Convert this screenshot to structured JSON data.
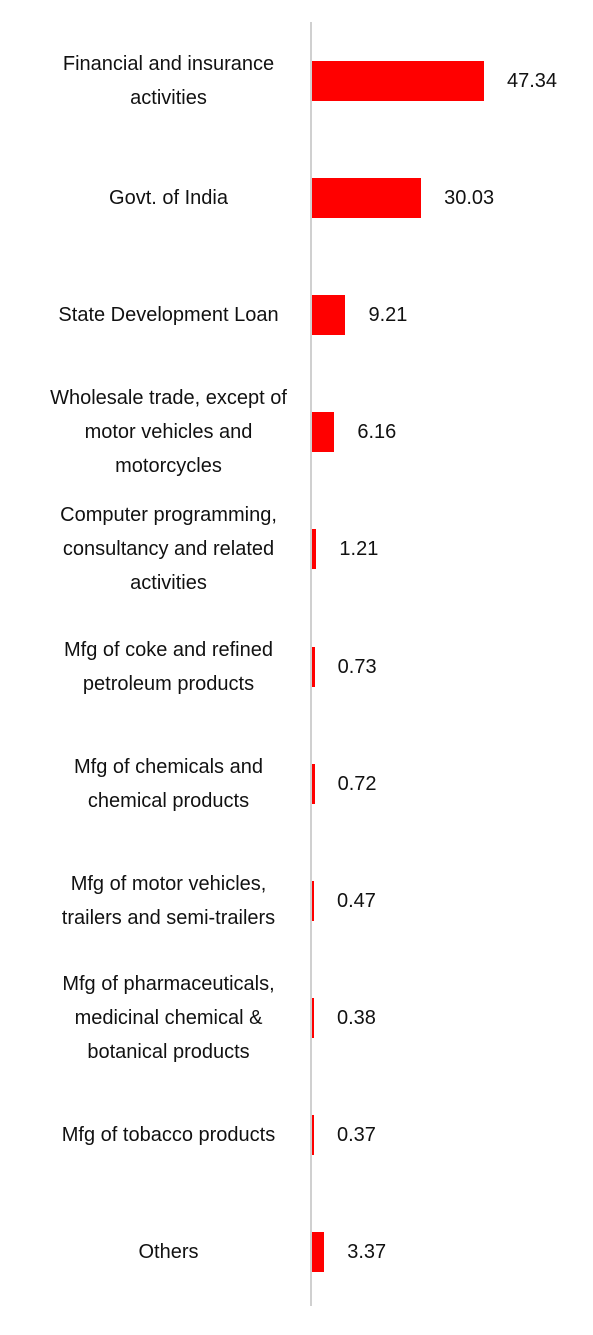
{
  "chart_data": {
    "type": "bar",
    "orientation": "horizontal",
    "color": "#ff0000",
    "categories": [
      "Financial and insurance activities",
      "Govt. of India",
      "State Development Loan",
      "Wholesale trade, except of motor vehicles and motorcycles",
      "Computer programming, consultancy and related activities",
      "Mfg of coke and refined petroleum products",
      "Mfg of chemicals and chemical products",
      "Mfg of motor vehicles, trailers and semi-trailers",
      "Mfg of pharmaceuticals, medicinal chemical & botanical products",
      "Mfg of tobacco products",
      "Others"
    ],
    "values": [
      47.34,
      30.03,
      9.21,
      6.16,
      1.21,
      0.73,
      0.72,
      0.47,
      0.38,
      0.37,
      3.37
    ]
  }
}
